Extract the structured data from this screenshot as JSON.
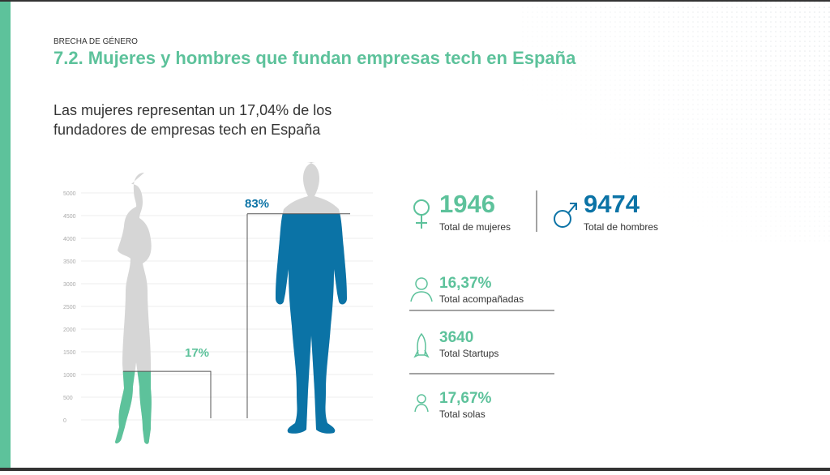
{
  "header": {
    "kicker": "BRECHA DE GÉNERO",
    "title": "7.2. Mujeres y hombres que fundan empresas tech en España"
  },
  "subtitle": [
    "Las mujeres representan un 17,04% de los",
    "fundadores de empresas tech en España"
  ],
  "axis": {
    "ylim": [
      0,
      5000
    ],
    "yticks": [
      0,
      500,
      1000,
      1500,
      2000,
      2500,
      3000,
      3500,
      4000,
      4500,
      5000
    ]
  },
  "figures": [
    {
      "label": "17%",
      "level": 1070,
      "color": "#5dc29b"
    },
    {
      "label": "83%",
      "level": 4540,
      "color": "#0b73a6"
    }
  ],
  "totals": [
    {
      "value": "1946",
      "label": "Total de mujeres",
      "color": "#5dc29b"
    },
    {
      "value": "9474",
      "label": "Total de hombres",
      "color": "#0b73a6"
    }
  ],
  "stats": [
    {
      "value": "16,37%",
      "label": "Total acompañadas"
    },
    {
      "value": "3640",
      "label": "Total Startups"
    },
    {
      "value": "17,67%",
      "label": "Total solas"
    }
  ]
}
